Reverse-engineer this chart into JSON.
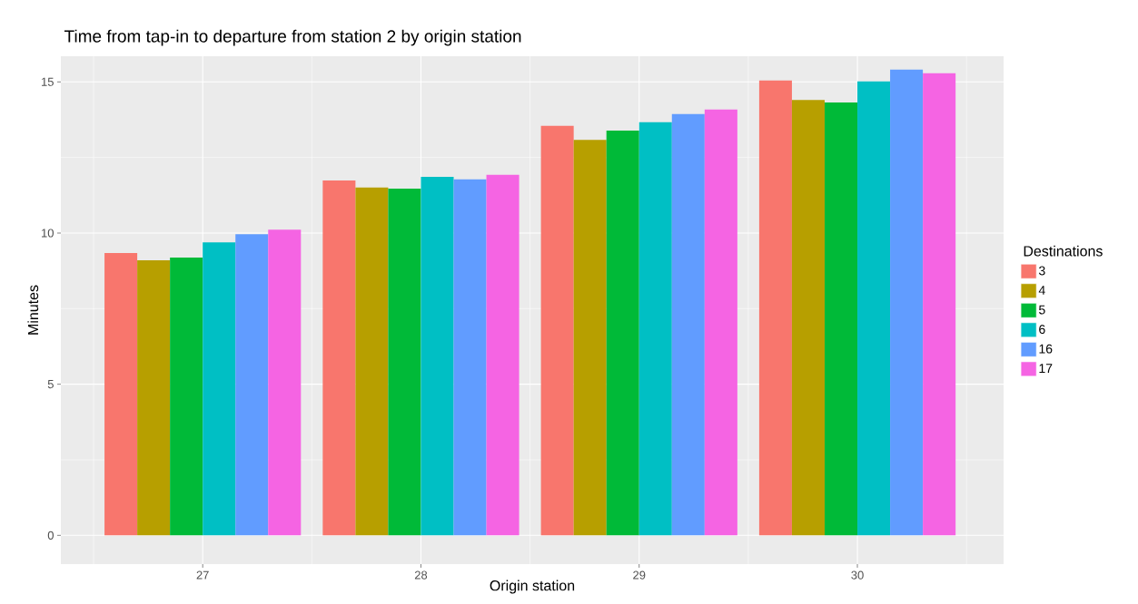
{
  "chart_data": {
    "type": "bar",
    "title": "Time from tap-in to departure from station 2 by origin station",
    "xlabel": "Origin station",
    "ylabel": "Minutes",
    "legend_title": "Destinations",
    "categories": [
      "27",
      "28",
      "29",
      "30"
    ],
    "series": [
      {
        "name": "3",
        "color": "#f8766d",
        "values": [
          9.34,
          11.74,
          13.55,
          15.05
        ]
      },
      {
        "name": "4",
        "color": "#b79f00",
        "values": [
          9.1,
          11.51,
          13.08,
          14.4
        ]
      },
      {
        "name": "5",
        "color": "#00ba38",
        "values": [
          9.19,
          11.47,
          13.39,
          14.32
        ]
      },
      {
        "name": "6",
        "color": "#00bfc4",
        "values": [
          9.69,
          11.86,
          13.67,
          15.02
        ]
      },
      {
        "name": "16",
        "color": "#619cff",
        "values": [
          9.96,
          11.78,
          13.94,
          15.41
        ]
      },
      {
        "name": "17",
        "color": "#f564e3",
        "values": [
          10.11,
          11.93,
          14.09,
          15.29
        ]
      }
    ],
    "ylim": [
      -0.95,
      15.85
    ],
    "yticks": [
      0,
      5,
      10,
      15
    ],
    "grid": true,
    "legend": "right"
  }
}
